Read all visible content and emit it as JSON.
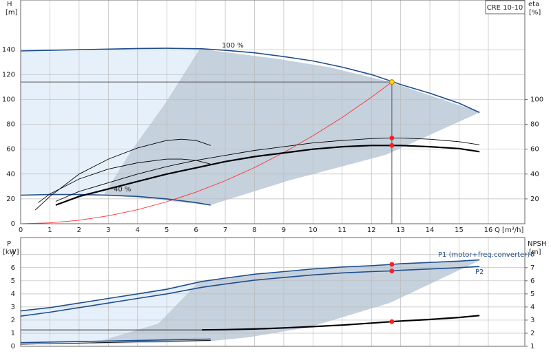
{
  "chart_data": [
    {
      "type": "line",
      "y_label": "H",
      "y_unit": "[m]",
      "y2_label": "eta",
      "y2_unit": "[%]",
      "x_label": "Q [m³/h]",
      "model": "CRE 10-10",
      "xlim": [
        0,
        17.25
      ],
      "xticks": [
        0,
        1,
        2,
        3,
        4,
        5,
        6,
        7,
        8,
        9,
        10,
        11,
        12,
        13,
        14,
        15,
        16
      ],
      "ylim": [
        0,
        180
      ],
      "yticks": [
        0,
        20,
        40,
        60,
        80,
        100,
        120,
        140
      ],
      "y2lim": [
        0,
        180
      ],
      "y2ticks": [
        20,
        40,
        60,
        80,
        100
      ],
      "grid": true,
      "series": [
        {
          "name": "100 %",
          "color": "#1f4e8c",
          "x": [
            0,
            1,
            2,
            3,
            4,
            5,
            6.2,
            7,
            8,
            9,
            10,
            11,
            12,
            12.7,
            13,
            14,
            15,
            15.7
          ],
          "values": [
            139,
            139.5,
            140,
            140.5,
            141,
            141.2,
            140.8,
            139.5,
            137.5,
            134.5,
            131,
            126,
            120,
            114.5,
            112,
            105,
            97,
            89.5
          ]
        },
        {
          "name": "40 %",
          "color": "#1f4e8c",
          "x": [
            0,
            1,
            2,
            3,
            4,
            5,
            6,
            6.5
          ],
          "values": [
            23,
            23.5,
            23.5,
            23,
            22,
            20,
            17,
            15
          ]
        },
        {
          "color": "#ff3030",
          "x": [
            0,
            1,
            2,
            3,
            4,
            5,
            6,
            7,
            8,
            9,
            10,
            11,
            12,
            12.7
          ],
          "values": [
            0,
            0.7,
            2.8,
            6.4,
            11.3,
            17.7,
            25.4,
            34.6,
            45.2,
            57.3,
            70.7,
            85.5,
            101.8,
            114
          ]
        },
        {
          "color": "#000000",
          "axis": "y2",
          "x": [
            1.2,
            2,
            3,
            4,
            5,
            6,
            7,
            8,
            9,
            10,
            11,
            12,
            12.7,
            13,
            14,
            15,
            15.7
          ],
          "values": [
            18,
            26,
            33,
            40,
            46,
            51,
            55,
            59,
            62,
            65,
            67,
            68.5,
            69,
            69,
            68,
            66,
            63.5
          ]
        },
        {
          "color": "#000000",
          "axis": "y2",
          "thick": true,
          "x": [
            1.2,
            2,
            3,
            4,
            5,
            6,
            7,
            8,
            9,
            10,
            11,
            12,
            12.7,
            13,
            14,
            15,
            15.7
          ],
          "values": [
            15,
            22,
            28,
            34,
            40,
            45,
            50,
            54,
            57,
            60,
            62,
            63,
            63,
            63,
            62,
            60.5,
            58
          ]
        },
        {
          "color": "#000000",
          "axis": "y2",
          "x": [
            0.5,
            1,
            2,
            3,
            4,
            5,
            5.5,
            6,
            6.5
          ],
          "values": [
            11,
            22,
            40,
            52,
            61,
            67,
            68,
            67,
            63
          ]
        },
        {
          "color": "#000000",
          "axis": "y2",
          "x": [
            0.6,
            1,
            2,
            3,
            4,
            5,
            5.5,
            6,
            6.5
          ],
          "values": [
            17,
            24,
            36,
            44,
            49,
            52,
            52,
            51,
            48
          ]
        }
      ],
      "markers": [
        {
          "x": 12.7,
          "value": 114,
          "color": "#ffd700",
          "crosshair": true
        },
        {
          "x": 12.7,
          "value": 69,
          "axis": "y2",
          "color": "#ff2020"
        },
        {
          "x": 12.7,
          "value": 63,
          "axis": "y2",
          "color": "#ff2020"
        }
      ]
    },
    {
      "type": "line",
      "y_label": "P",
      "y_unit": "[kW]",
      "y2_label": "NPSH",
      "y2_unit": "[m]",
      "xlim": [
        0,
        17.25
      ],
      "ylim": [
        0,
        8.3
      ],
      "yticks": [
        0,
        1,
        2,
        3,
        4,
        5,
        6,
        7
      ],
      "y2lim": [
        1,
        9.3
      ],
      "y2ticks": [
        1,
        2,
        3,
        4,
        5,
        6,
        7,
        8
      ],
      "grid": true,
      "series": [
        {
          "name": "P1 (motor+freq.converter)",
          "color": "#1f4e8c",
          "x": [
            0,
            1,
            2,
            3,
            4,
            5,
            6.2,
            7,
            8,
            9,
            10,
            11,
            12,
            12.7,
            13,
            14,
            15,
            15.7
          ],
          "values": [
            2.7,
            2.95,
            3.3,
            3.65,
            4,
            4.35,
            4.95,
            5.2,
            5.5,
            5.7,
            5.9,
            6.05,
            6.15,
            6.25,
            6.3,
            6.4,
            6.5,
            6.6
          ]
        },
        {
          "name": "P2",
          "color": "#1f4e8c",
          "x": [
            0,
            1,
            2,
            3,
            4,
            5,
            6.2,
            7,
            8,
            9,
            10,
            11,
            12,
            12.7,
            13,
            14,
            15,
            15.7
          ],
          "values": [
            2.3,
            2.6,
            2.95,
            3.3,
            3.65,
            4,
            4.5,
            4.75,
            5.05,
            5.25,
            5.45,
            5.6,
            5.7,
            5.75,
            5.8,
            5.9,
            6,
            6.1
          ]
        },
        {
          "color": "#000000",
          "axis": "y2",
          "thick": true,
          "x": [
            6.2,
            7,
            8,
            9,
            10,
            11,
            12,
            12.7,
            13,
            14,
            15,
            15.7
          ],
          "values": [
            2.25,
            2.27,
            2.32,
            2.4,
            2.5,
            2.62,
            2.77,
            2.88,
            2.93,
            3.05,
            3.2,
            3.35
          ]
        },
        {
          "color": "#000000",
          "axis": "y2",
          "x": [
            0,
            6.2
          ],
          "values": [
            2.25,
            2.25
          ]
        },
        {
          "color": "#1f4e8c",
          "x": [
            0,
            6.5
          ],
          "values": [
            0.28,
            0.55
          ]
        },
        {
          "color": "#000000",
          "x": [
            0,
            6.5
          ],
          "values": [
            0.15,
            0.45
          ]
        }
      ],
      "markers": [
        {
          "x": 12.7,
          "value": 6.25,
          "color": "#ff2020"
        },
        {
          "x": 12.7,
          "value": 5.75,
          "color": "#ff2020"
        },
        {
          "x": 12.7,
          "value": 2.88,
          "axis": "y2",
          "color": "#ff2020"
        }
      ]
    }
  ]
}
